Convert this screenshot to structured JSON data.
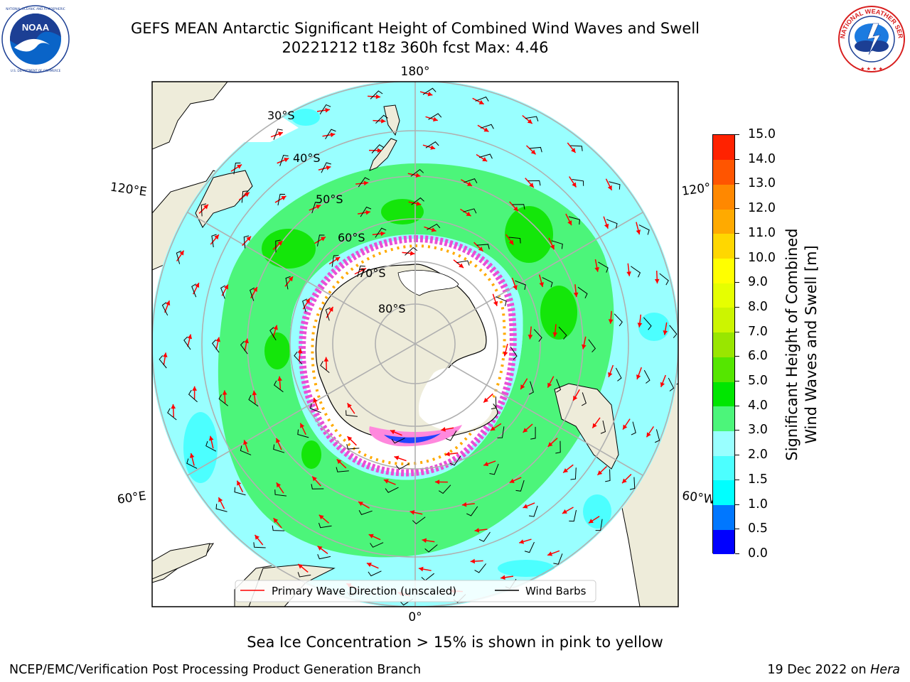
{
  "title": {
    "line1": "GEFS MEAN Antarctic Significant Height of Combined Wind Waves and Swell",
    "line2": "20221212 t18z 360h fcst   Max: 4.46"
  },
  "logos": {
    "left": {
      "name": "NOAA",
      "ring_text": "NATIONAL OCEANIC AND ATMOSPHERIC ADMINISTRATION · U.S. DEPARTMENT OF COMMERCE"
    },
    "right": {
      "name": "NATIONAL WEATHER SERVICE"
    }
  },
  "map": {
    "longitude_labels": [
      "180°",
      "120°E",
      "120°",
      "60°E",
      "60°W",
      "0°"
    ],
    "latitude_labels": [
      "30°S",
      "40°S",
      "50°S",
      "60°S",
      "70°S",
      "80°S"
    ],
    "legend": {
      "wave_direction": "Primary Wave Direction (unscaled)",
      "wind_barbs": "Wind Barbs"
    },
    "colors": {
      "land": "#eeecda",
      "ocean_low": "#99ffff",
      "ocean_mid": "#4cf57a",
      "ocean_high": "#14e60a",
      "ice": "#e84fd6",
      "arrows": "#ff0000"
    }
  },
  "colorbar": {
    "label": "Significant Height of Combined Wind Waves and Swell [m]",
    "label_line1": "Significant Height of Combined",
    "label_line2": "Wind Waves and Swell [m]",
    "ticks": [
      "0.0",
      "0.5",
      "1.0",
      "1.5",
      "2.0",
      "3.0",
      "4.0",
      "5.0",
      "6.0",
      "7.0",
      "8.0",
      "9.0",
      "10.0",
      "11.0",
      "12.0",
      "13.0",
      "14.0",
      "15.0"
    ],
    "colors": [
      "#0000ff",
      "#0077ff",
      "#00ffff",
      "#4cffff",
      "#99ffff",
      "#4cf57a",
      "#00e600",
      "#55e600",
      "#99e600",
      "#ccf500",
      "#e6ff00",
      "#ffff00",
      "#ffd700",
      "#ffaa00",
      "#ff8800",
      "#ff5500",
      "#ff2200"
    ]
  },
  "footer": {
    "note": "Sea Ice Concentration > 15% is shown in pink to yellow",
    "credit": "NCEP/EMC/Verification Post Processing Product Generation Branch",
    "date": "19 Dec 2022 on",
    "host": "Hera"
  }
}
